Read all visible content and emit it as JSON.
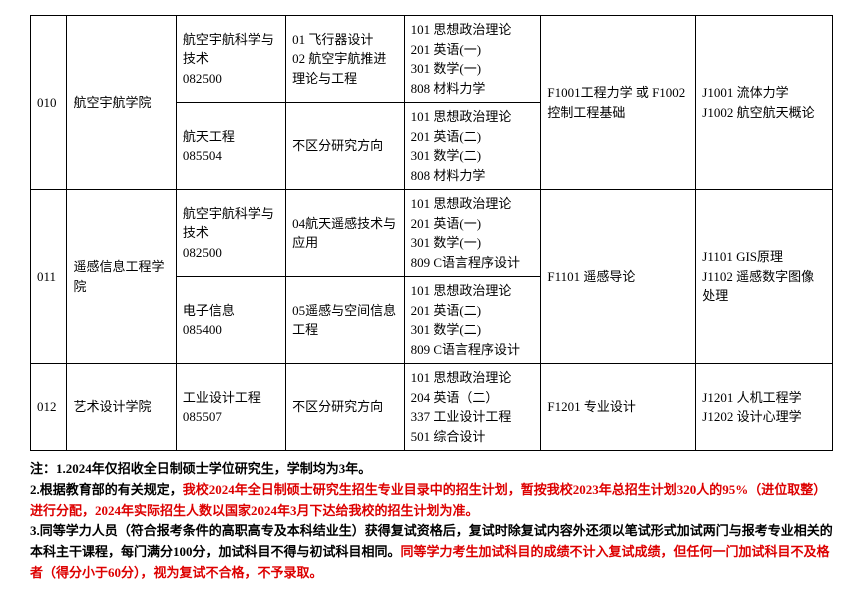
{
  "rows": [
    {
      "code": "010",
      "college": "航空宇航学院",
      "majors": [
        {
          "name": "航空宇航科学与技术\n082500",
          "direction": "01 飞行器设计\n02 航空宇航推进理论与工程",
          "exam": "101 思想政治理论\n201 英语(一)\n301 数学(一)\n808 材料力学"
        },
        {
          "name": "航天工程\n085504",
          "direction": "不区分研究方向",
          "exam": "101 思想政治理论\n201 英语(二)\n301 数学(二)\n808 材料力学"
        }
      ],
      "subj1": "F1001工程力学 或 F1002 控制工程基础",
      "subj2": "J1001 流体力学\nJ1002 航空航天概论"
    },
    {
      "code": "011",
      "college": "遥感信息工程学院",
      "majors": [
        {
          "name": "航空宇航科学与技术\n082500",
          "direction": "04航天遥感技术与应用",
          "exam": "101 思想政治理论\n201 英语(一)\n301 数学(一)\n809 C语言程序设计"
        },
        {
          "name": "电子信息\n085400",
          "direction": "05遥感与空间信息工程",
          "exam": "101 思想政治理论\n201 英语(二)\n301 数学(二)\n809 C语言程序设计"
        }
      ],
      "subj1": "F1101 遥感导论",
      "subj2": "J1101 GIS原理\nJ1102 遥感数字图像处理"
    },
    {
      "code": "012",
      "college": "艺术设计学院",
      "majors": [
        {
          "name": "工业设计工程\n085507",
          "direction": "不区分研究方向",
          "exam": "101 思想政治理论\n204 英语（二）\n337 工业设计工程\n501 综合设计"
        }
      ],
      "subj1": "F1201 专业设计",
      "subj2": "J1201 人机工程学\nJ1202 设计心理学"
    }
  ],
  "notes": {
    "n1a": "注：1.2024年仅招收全日制硕士学位研究生，学制均为3年。",
    "n2a": "2.根据教育部的有关规定，",
    "n2b": "我校2024年全日制硕士研究生招生专业目录中的招生计划，暂按我校2023年总招生计划320人的95%（进位取整）进行分配，2024年实际招生人数以国家2024年3月下达给我校的招生计划为准。",
    "n3a": "3.同等学力人员（符合报考条件的高职高专及本科结业生）获得复试资格后，复试时除复试内容外还须以笔试形式加试两门与报考专业相关的本科主干课程，每门满分100分，加试科目不得与初试科目相同。",
    "n3b": "同等学力考生加试科目的成绩不计入复试成绩，但任何一门加试科目不及格者（得分小于60分），视为复试不合格，不予录取。"
  }
}
